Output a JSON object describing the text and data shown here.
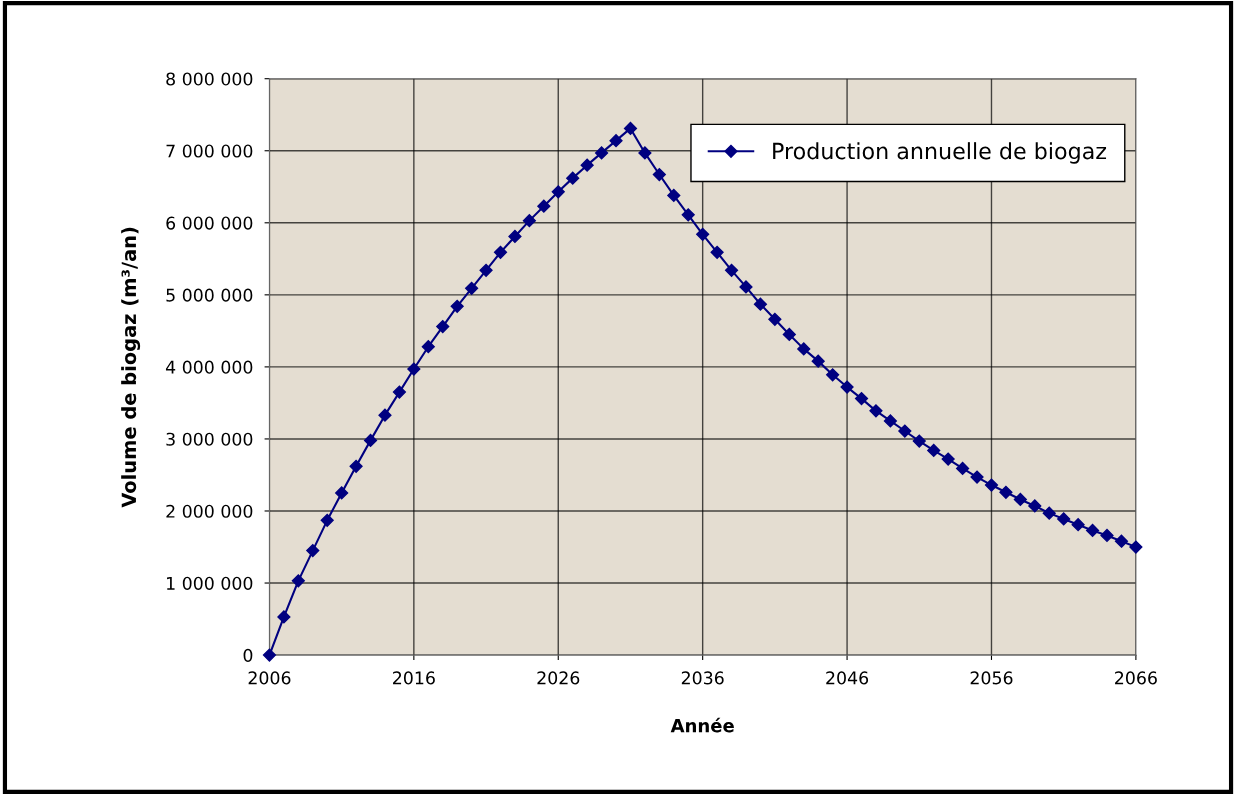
{
  "chart_data": {
    "type": "line",
    "xlabel": "Année",
    "ylabel": "Volume de biogaz (m³/an)",
    "x": [
      2006,
      2007,
      2008,
      2009,
      2010,
      2011,
      2012,
      2013,
      2014,
      2015,
      2016,
      2017,
      2018,
      2019,
      2020,
      2021,
      2022,
      2023,
      2024,
      2025,
      2026,
      2027,
      2028,
      2029,
      2030,
      2031,
      2032,
      2033,
      2034,
      2035,
      2036,
      2037,
      2038,
      2039,
      2040,
      2041,
      2042,
      2043,
      2044,
      2045,
      2046,
      2047,
      2048,
      2049,
      2050,
      2051,
      2052,
      2053,
      2054,
      2055,
      2056,
      2057,
      2058,
      2059,
      2060,
      2061,
      2062,
      2063,
      2064,
      2065,
      2066
    ],
    "series": [
      {
        "name": "Production annuelle de biogaz",
        "color": "#000080",
        "values": [
          0,
          530000,
          1030000,
          1450000,
          1870000,
          2250000,
          2620000,
          2980000,
          3330000,
          3650000,
          3970000,
          4280000,
          4560000,
          4840000,
          5090000,
          5340000,
          5590000,
          5810000,
          6030000,
          6230000,
          6430000,
          6620000,
          6800000,
          6970000,
          7140000,
          7310000,
          6970000,
          6670000,
          6380000,
          6110000,
          5840000,
          5590000,
          5340000,
          5110000,
          4870000,
          4660000,
          4450000,
          4250000,
          4080000,
          3890000,
          3720000,
          3560000,
          3390000,
          3250000,
          3110000,
          2970000,
          2840000,
          2720000,
          2590000,
          2470000,
          2360000,
          2260000,
          2160000,
          2070000,
          1970000,
          1890000,
          1810000,
          1730000,
          1660000,
          1580000,
          1500000
        ]
      }
    ],
    "xlim": [
      2006,
      2066
    ],
    "xticks": [
      2006,
      2016,
      2026,
      2036,
      2046,
      2056,
      2066
    ],
    "ylim": [
      0,
      8000000
    ],
    "yticks": [
      0,
      {
        "value": 1000000,
        "label": "1 000 000"
      },
      {
        "value": 2000000,
        "label": "2 000 000"
      },
      {
        "value": 3000000,
        "label": "3 000 000"
      },
      {
        "value": 4000000,
        "label": "4 000 000"
      },
      {
        "value": 5000000,
        "label": "5 000 000"
      },
      {
        "value": 6000000,
        "label": "6 000 000"
      },
      {
        "value": 7000000,
        "label": "7 000 000"
      },
      {
        "value": 8000000,
        "label": "8 000 000"
      }
    ],
    "grid": true,
    "legend": "top right",
    "marker": "diamond",
    "line_style": "solid"
  }
}
